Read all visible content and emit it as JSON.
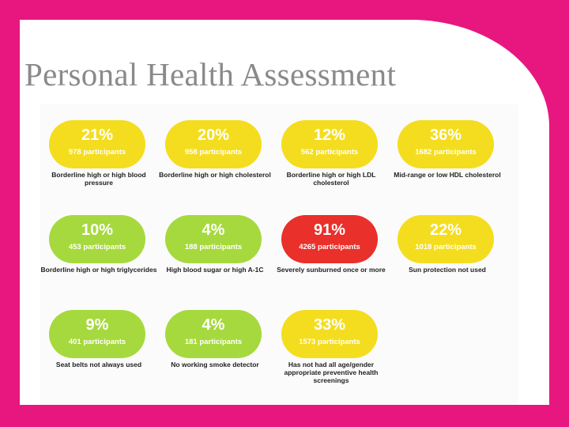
{
  "title": "Personal Health Assessment",
  "colors": {
    "background": "#e8177f",
    "yellow": "#f4dd1e",
    "green": "#a6d93d",
    "red": "#e9302a",
    "title_text": "#8a8a8a"
  },
  "stats": [
    {
      "percent": "21%",
      "participants": "978 participants",
      "label": "Borderline high or high blood pressure",
      "color": "yellow"
    },
    {
      "percent": "20%",
      "participants": "958 participants",
      "label": "Borderline high or high cholesterol",
      "color": "yellow"
    },
    {
      "percent": "12%",
      "participants": "562 participants",
      "label": "Borderline high or high LDL cholesterol",
      "color": "yellow"
    },
    {
      "percent": "36%",
      "participants": "1682 participants",
      "label": "Mid-range or low HDL cholesterol",
      "color": "yellow"
    },
    {
      "percent": "10%",
      "participants": "453 participants",
      "label": "Borderline high or high triglycerides",
      "color": "green"
    },
    {
      "percent": "4%",
      "participants": "188 participants",
      "label": "High blood sugar or high A-1C",
      "color": "green"
    },
    {
      "percent": "91%",
      "participants": "4265 participants",
      "label": "Severely sunburned once or more",
      "color": "red"
    },
    {
      "percent": "22%",
      "participants": "1018 participants",
      "label": "Sun protection not used",
      "color": "yellow"
    },
    {
      "percent": "9%",
      "participants": "401 participants",
      "label": "Seat belts not always used",
      "color": "green"
    },
    {
      "percent": "4%",
      "participants": "181 participants",
      "label": "No working smoke detector",
      "color": "green"
    },
    {
      "percent": "33%",
      "participants": "1573 participants",
      "label": "Has not had all age/gender appropriate preventive health screenings",
      "color": "yellow"
    }
  ]
}
